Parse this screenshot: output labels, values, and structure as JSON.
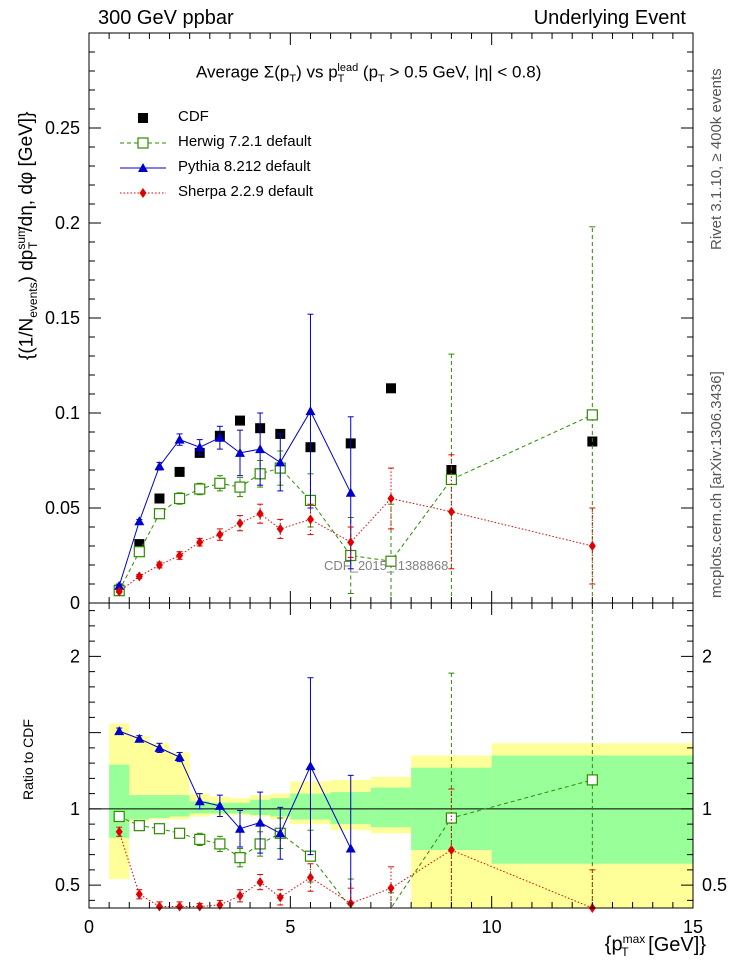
{
  "header": {
    "left": "300 GeV ppbar",
    "right": "Underlying Event"
  },
  "side_labels": {
    "rivet": "Rivet 3.1.10, ≥ 400k events",
    "mcplots": "mcplots.cern.ch [arXiv:1306.3436]"
  },
  "watermark": "CDF_2015_I1388868",
  "colors": {
    "cdf": "#000000",
    "herwig": "#2e8b00",
    "pythia": "#0000cc",
    "sherpa": "#e00000",
    "band_outer": "#ffff99",
    "band_inner": "#99ff99"
  },
  "chart_data": [
    {
      "id": "main",
      "type": "scatter",
      "title": "Average Σ(pT) vs pT^lead (pT > 0.5 GeV, |η| < 0.8)",
      "title_parts": {
        "avg": "Average ",
        "sigma": "Σ(p",
        "sub_t": "T",
        "close": ") vs p",
        "sup_lead": "lead",
        "tail_a": " (p",
        "tail_b": " > 0.5 GeV, |η| < 0.8)"
      },
      "ylabel": "{(1/N_events) dp_T^sum/dη, dφ [GeV]}",
      "ylabel_parts": {
        "a": "{(1/N",
        "sub_events": "events",
        "b": ") dp",
        "sup_sum": "sum",
        "sub_T": "T",
        "c": "/dη, dφ [GeV]}"
      },
      "xlim": [
        0,
        15
      ],
      "ylim": [
        0,
        0.3
      ],
      "yticks": [
        0,
        0.05,
        0.1,
        0.15,
        0.2,
        0.25
      ],
      "ytick_labels": [
        "0",
        "0.05",
        "0.1",
        "0.15",
        "0.2",
        "0.25"
      ],
      "series": [
        {
          "name": "CDF",
          "style": "filled-square",
          "x": [
            0.75,
            1.25,
            1.75,
            2.25,
            2.75,
            3.25,
            3.75,
            4.25,
            4.75,
            5.5,
            6.5,
            7.5,
            9.0,
            12.5
          ],
          "y": [
            0.007,
            0.031,
            0.055,
            0.069,
            0.079,
            0.088,
            0.096,
            0.092,
            0.089,
            0.082,
            0.084,
            0.113,
            0.07,
            0.085
          ],
          "err": [
            0.0,
            0.0,
            0.0,
            0.0,
            0.0,
            0.0,
            0.0,
            0.0,
            0.0,
            0.0,
            0.0,
            0.0,
            0.0,
            0.0
          ]
        },
        {
          "name": "Herwig 7.2.1 default",
          "style": "open-square-dashed",
          "x": [
            0.75,
            1.25,
            1.75,
            2.25,
            2.75,
            3.25,
            3.75,
            4.25,
            4.75,
            5.5,
            6.5,
            7.5,
            9.0,
            12.5
          ],
          "y": [
            0.0065,
            0.027,
            0.047,
            0.055,
            0.06,
            0.063,
            0.061,
            0.068,
            0.071,
            0.054,
            0.025,
            0.022,
            0.065,
            0.099
          ],
          "err": [
            0.001,
            0.002,
            0.002,
            0.003,
            0.003,
            0.004,
            0.005,
            0.007,
            0.009,
            0.014,
            0.02,
            0.03,
            0.066,
            0.099
          ]
        },
        {
          "name": "Pythia 8.212 default",
          "style": "filled-triangle-solid",
          "x": [
            0.75,
            1.25,
            1.75,
            2.25,
            2.75,
            3.25,
            3.75,
            4.25,
            4.75,
            5.5,
            6.5
          ],
          "y": [
            0.009,
            0.043,
            0.072,
            0.086,
            0.082,
            0.087,
            0.079,
            0.081,
            0.074,
            0.101,
            0.058
          ],
          "err": [
            0.001,
            0.001,
            0.002,
            0.003,
            0.004,
            0.006,
            0.012,
            0.019,
            0.015,
            0.051,
            0.04
          ]
        },
        {
          "name": "Sherpa 2.2.9 default",
          "style": "filled-diamond-dotted",
          "x": [
            0.75,
            1.25,
            1.75,
            2.25,
            2.75,
            3.25,
            3.75,
            4.25,
            4.75,
            5.5,
            6.5,
            7.5,
            9.0,
            12.5
          ],
          "y": [
            0.006,
            0.014,
            0.02,
            0.025,
            0.032,
            0.036,
            0.042,
            0.047,
            0.039,
            0.044,
            0.032,
            0.055,
            0.048,
            0.03
          ],
          "err": [
            0.0005,
            0.001,
            0.0015,
            0.002,
            0.002,
            0.003,
            0.004,
            0.005,
            0.005,
            0.008,
            0.008,
            0.016,
            0.03,
            0.02
          ]
        }
      ]
    },
    {
      "id": "ratio",
      "type": "scatter",
      "ylabel": "Ratio to CDF",
      "xlabel": "{pT^max [GeV]}",
      "xlabel_parts": {
        "a": "{p",
        "sup_max": "max",
        "sub_T": "T",
        "b": " [GeV]}"
      },
      "xlim": [
        0,
        15
      ],
      "ylim": [
        0.35,
        2.35
      ],
      "xticks": [
        0,
        5,
        10,
        15
      ],
      "xtick_labels": [
        "0",
        "5",
        "10",
        "15"
      ],
      "yticks": [
        0.5,
        1,
        1.5,
        2
      ],
      "ytick_labels": [
        "0.5",
        "1",
        "",
        "2"
      ],
      "bands": {
        "edges": [
          0.5,
          1.0,
          1.5,
          2.0,
          2.5,
          3.0,
          3.5,
          4.0,
          4.5,
          5.0,
          6.0,
          7.0,
          8.0,
          10.0,
          15.0
        ],
        "outer_lo": [
          0.54,
          0.92,
          0.93,
          0.93,
          0.95,
          0.96,
          0.96,
          0.95,
          0.93,
          0.9,
          0.86,
          0.84,
          0.35,
          0.35
        ],
        "outer_hi": [
          1.56,
          1.48,
          1.43,
          1.37,
          1.1,
          1.08,
          1.07,
          1.09,
          1.1,
          1.18,
          1.19,
          1.21,
          1.35,
          1.43
        ],
        "inner_lo": [
          0.81,
          0.93,
          0.94,
          0.95,
          0.97,
          0.97,
          0.97,
          0.96,
          0.95,
          0.93,
          0.9,
          0.88,
          0.73,
          0.64
        ],
        "inner_hi": [
          1.29,
          1.09,
          1.09,
          1.09,
          1.05,
          1.04,
          1.04,
          1.06,
          1.07,
          1.1,
          1.11,
          1.14,
          1.27,
          1.35
        ]
      },
      "series": [
        {
          "name": "Herwig 7.2.1 default",
          "style": "open-square-dashed",
          "x": [
            0.75,
            1.25,
            1.75,
            2.25,
            2.75,
            3.25,
            3.75,
            4.25,
            4.75,
            5.5,
            6.5,
            7.5,
            9.0,
            12.5
          ],
          "y": [
            0.95,
            0.89,
            0.87,
            0.84,
            0.8,
            0.77,
            0.68,
            0.77,
            0.84,
            0.69,
            0.3,
            0.19,
            0.94,
            1.19
          ],
          "err": [
            0.02,
            0.03,
            0.03,
            0.03,
            0.04,
            0.05,
            0.06,
            0.08,
            0.1,
            0.17,
            0.24,
            0.26,
            0.95,
            1.16
          ]
        },
        {
          "name": "Pythia 8.212 default",
          "style": "filled-triangle-solid",
          "x": [
            0.75,
            1.25,
            1.75,
            2.25,
            2.75,
            3.25,
            3.75,
            4.25,
            4.75,
            5.5,
            6.5
          ],
          "y": [
            1.51,
            1.46,
            1.4,
            1.34,
            1.05,
            1.02,
            0.87,
            0.91,
            0.84,
            1.28,
            0.74
          ],
          "err": [
            0.02,
            0.02,
            0.03,
            0.03,
            0.05,
            0.07,
            0.12,
            0.2,
            0.17,
            0.58,
            0.48
          ]
        },
        {
          "name": "Sherpa 2.2.9 default",
          "style": "filled-diamond-dotted",
          "x": [
            0.75,
            1.25,
            1.75,
            2.25,
            2.75,
            3.25,
            3.75,
            4.25,
            4.75,
            5.5,
            6.5,
            7.5,
            9.0,
            12.5
          ],
          "y": [
            0.85,
            0.44,
            0.36,
            0.36,
            0.36,
            0.37,
            0.43,
            0.52,
            0.42,
            0.55,
            0.38,
            0.48,
            0.73,
            0.35
          ],
          "err": [
            0.03,
            0.03,
            0.03,
            0.03,
            0.02,
            0.03,
            0.04,
            0.05,
            0.05,
            0.09,
            0.1,
            0.14,
            0.4,
            0.25
          ]
        }
      ]
    }
  ]
}
